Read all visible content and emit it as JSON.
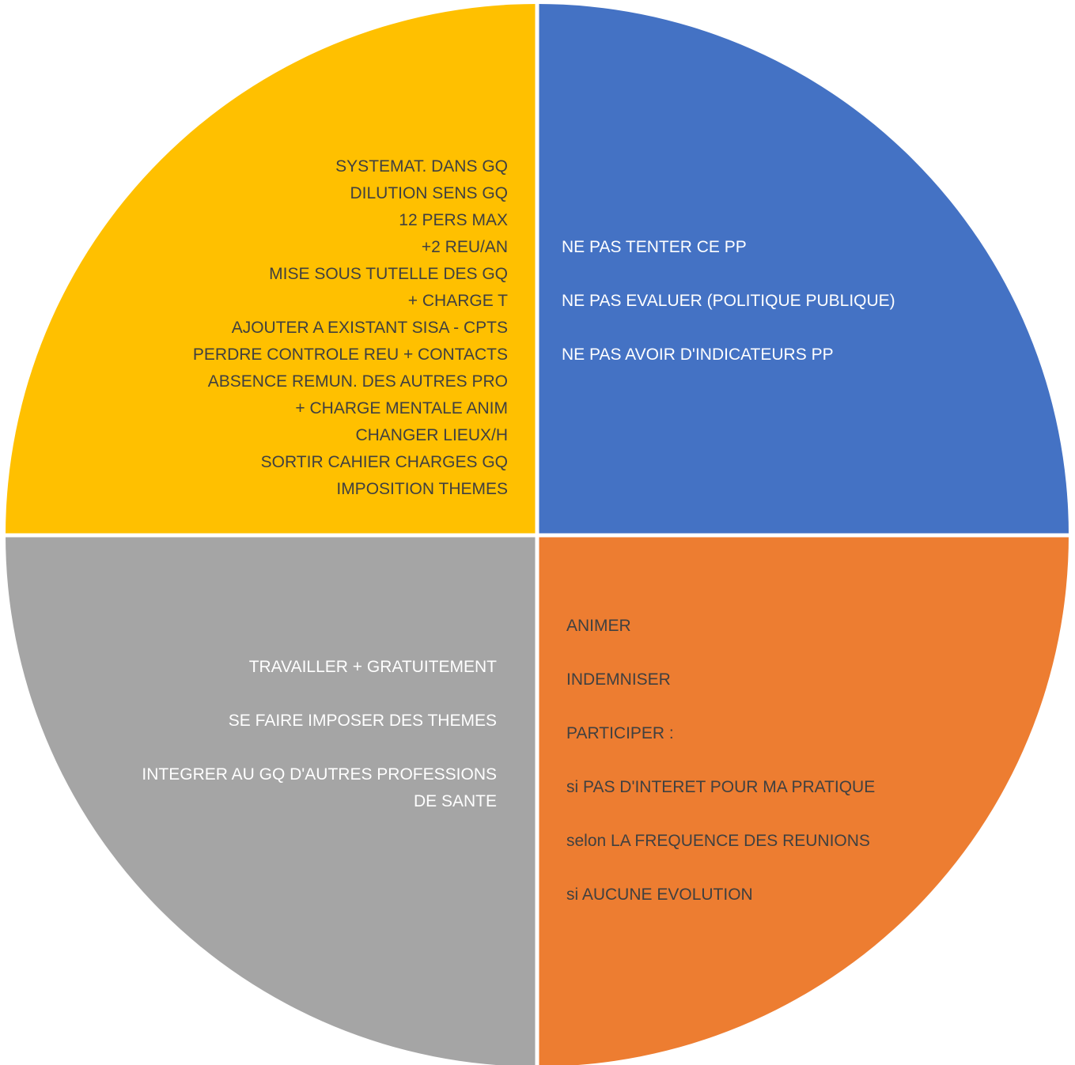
{
  "colors": {
    "top_left": "#FFC000",
    "top_right": "#4472C4",
    "bottom_right": "#ED7D31",
    "bottom_left": "#A5A5A5",
    "divider": "#FFFFFF"
  },
  "quadrants": {
    "top_left": {
      "lines": [
        "SYSTEMAT. DANS GQ",
        "DILUTION SENS GQ",
        "12 PERS MAX",
        "+2 REU/AN",
        "MISE SOUS TUTELLE DES GQ",
        "+ CHARGE T",
        "AJOUTER A EXISTANT SISA - CPTS",
        "PERDRE CONTROLE REU + CONTACTS",
        "ABSENCE REMUN. DES AUTRES PRO",
        "+ CHARGE MENTALE ANIM",
        "CHANGER LIEUX/H",
        "SORTIR CAHIER CHARGES GQ",
        "IMPOSITION THEMES"
      ]
    },
    "top_right": {
      "lines": [
        "NE PAS TENTER CE PP",
        "NE PAS EVALUER (POLITIQUE PUBLIQUE)",
        "NE PAS AVOIR D'INDICATEURS PP"
      ]
    },
    "bottom_right": {
      "lines": [
        "ANIMER",
        "INDEMNISER",
        "PARTICIPER :",
        "si PAS D'INTERET POUR MA PRATIQUE",
        "selon LA FREQUENCE DES REUNIONS",
        "si AUCUNE EVOLUTION"
      ]
    },
    "bottom_left": {
      "lines": [
        "TRAVAILLER + GRATUITEMENT",
        "SE FAIRE IMPOSER DES THEMES",
        "INTEGRER AU GQ D'AUTRES PROFESSIONS",
        "DE SANTE"
      ]
    }
  }
}
